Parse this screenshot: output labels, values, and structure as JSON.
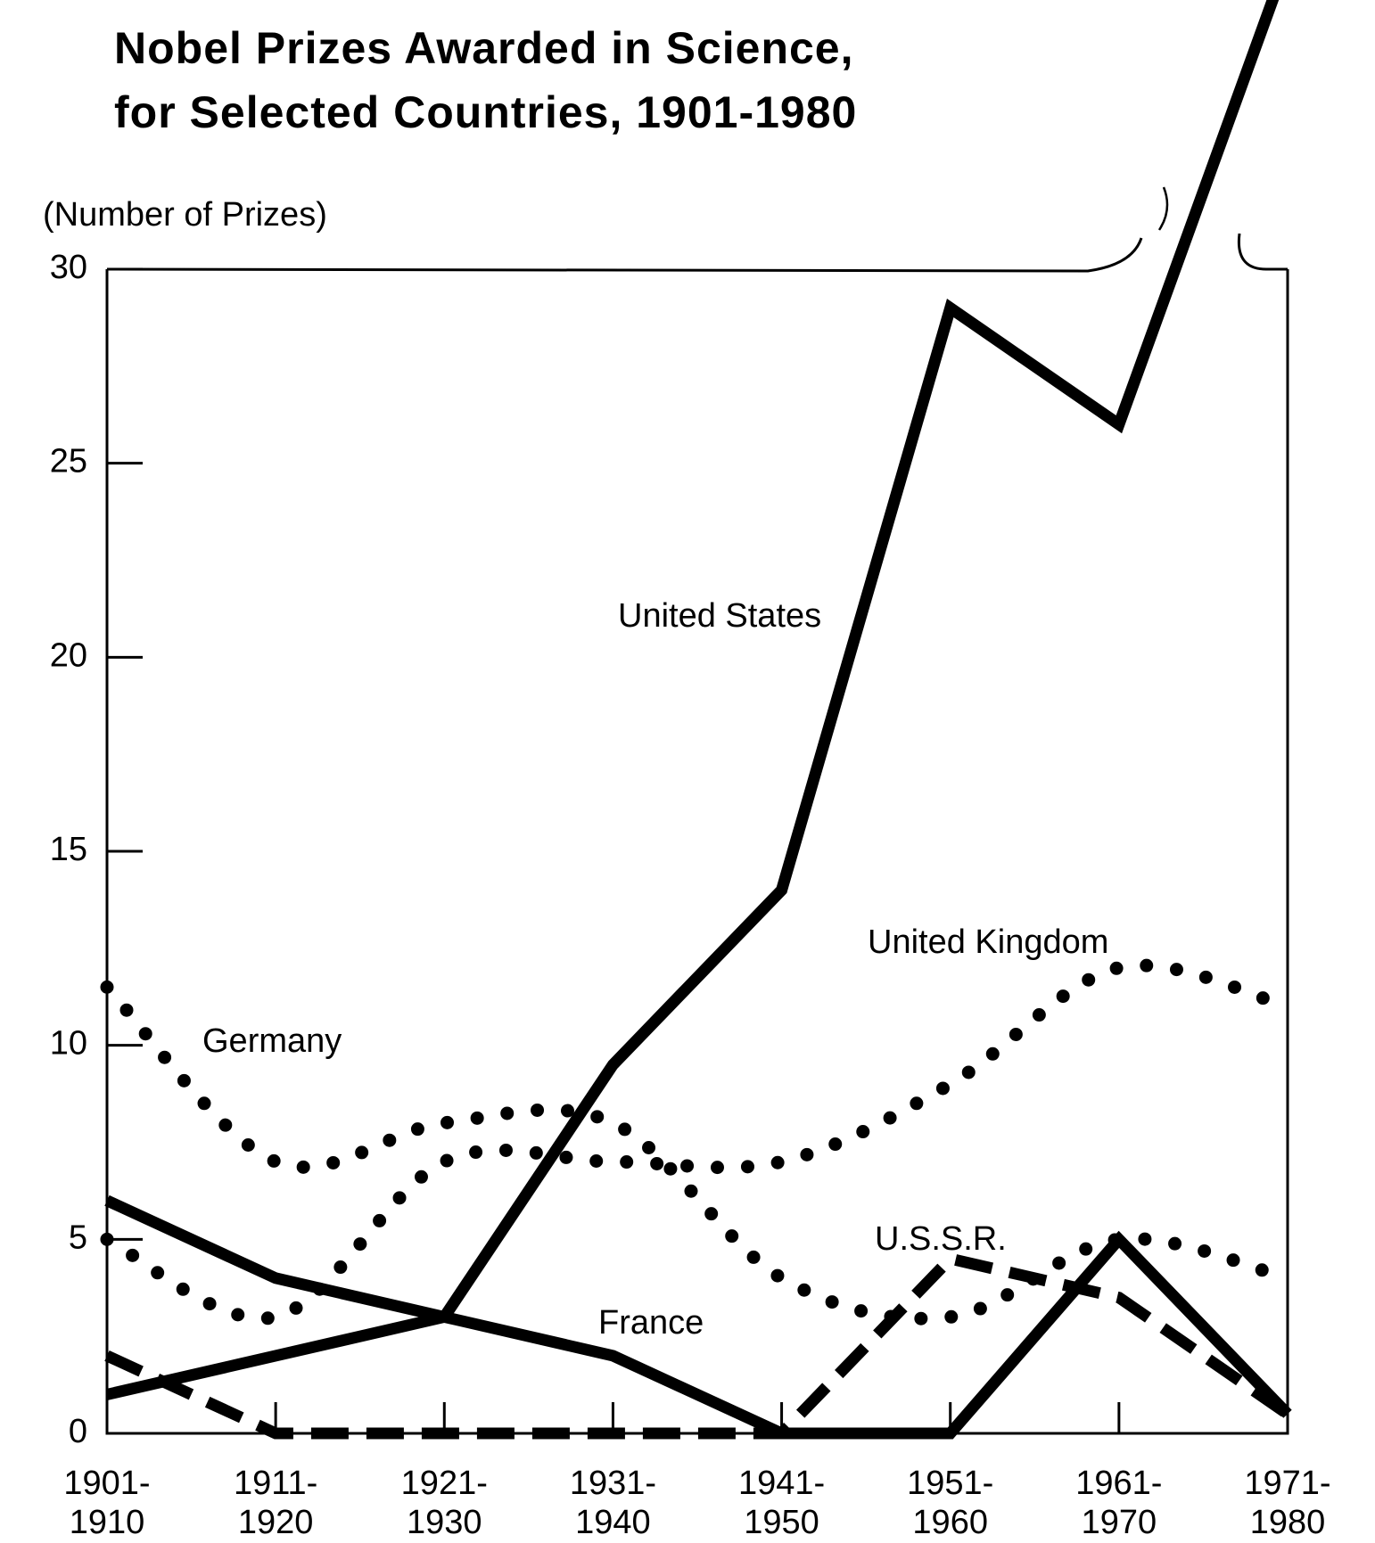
{
  "chart_data": {
    "type": "line",
    "title": "Nobel Prizes Awarded in Science,\nfor Selected Countries, 1901-1980",
    "y_label": "(Number of Prizes)",
    "categories": [
      "1901-\n1910",
      "1911-\n1920",
      "1921-\n1930",
      "1931-\n1940",
      "1941-\n1950",
      "1951-\n1960",
      "1961-\n1970",
      "1971-\n1980"
    ],
    "series": [
      {
        "name": "United States",
        "color": "#000000",
        "style": "solid",
        "values": [
          1,
          2,
          3,
          9.5,
          14,
          29,
          26,
          38
        ]
      },
      {
        "name": "United Kingdom",
        "color": "#000000",
        "style": "dotted",
        "values": [
          5,
          3,
          7,
          7,
          7,
          9,
          12,
          11
        ]
      },
      {
        "name": "Germany",
        "color": "#000000",
        "style": "dotted",
        "values": [
          11.5,
          7,
          8,
          8,
          4,
          3,
          5,
          4
        ]
      },
      {
        "name": "U.S.S.R.",
        "color": "#000000",
        "style": "dashed",
        "values": [
          2,
          0,
          0,
          0,
          0,
          4.5,
          3.5,
          0.5
        ]
      },
      {
        "name": "France",
        "color": "#000000",
        "style": "solid",
        "values": [
          6,
          4,
          3,
          2,
          0,
          0,
          5,
          0.5
        ]
      }
    ],
    "ylim": [
      0,
      30
    ],
    "yticks": [
      0,
      5,
      10,
      15,
      20,
      25,
      30
    ],
    "grid": false
  }
}
